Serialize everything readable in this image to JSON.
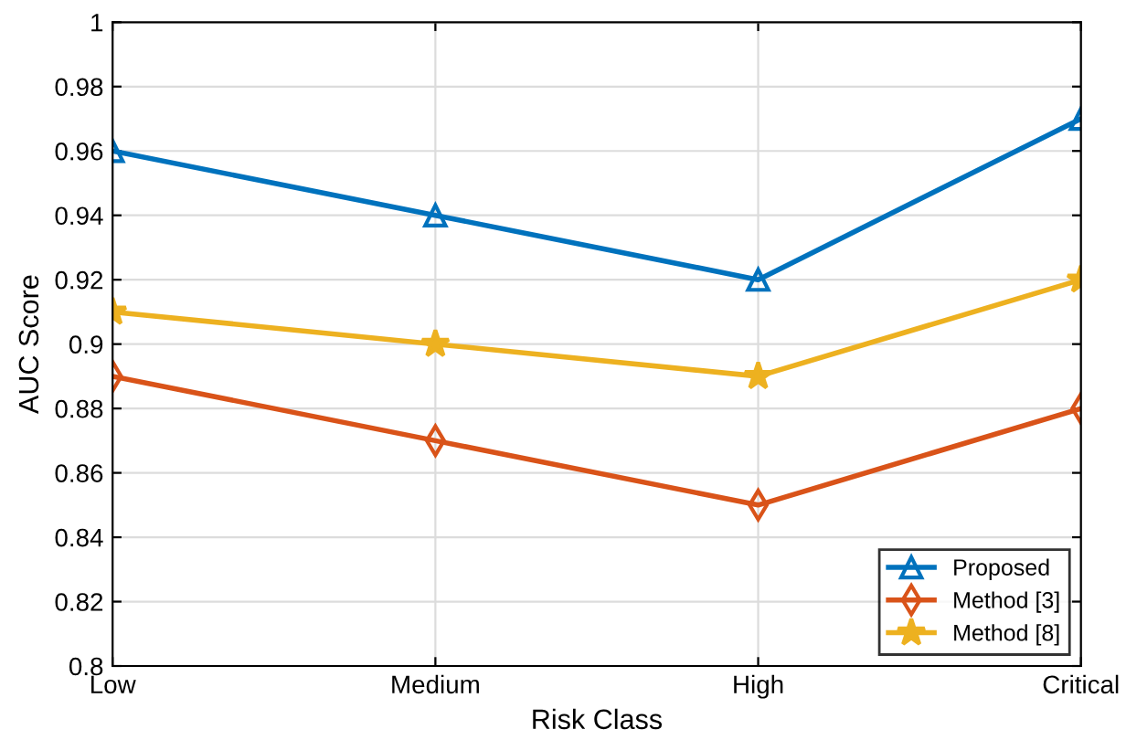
{
  "chart_data": {
    "type": "line",
    "xlabel": "Risk Class",
    "ylabel": "AUC Score",
    "categories": [
      "Low",
      "Medium",
      "High",
      "Critical"
    ],
    "series": [
      {
        "name": "Proposed",
        "color": "#0072bd",
        "marker": "triangle",
        "values": [
          0.96,
          0.94,
          0.92,
          0.97
        ]
      },
      {
        "name": "Method [3]",
        "color": "#d95319",
        "marker": "diamond",
        "values": [
          0.89,
          0.87,
          0.85,
          0.88
        ]
      },
      {
        "name": "Method [8]",
        "color": "#edb120",
        "marker": "star",
        "values": [
          0.91,
          0.9,
          0.89,
          0.92
        ]
      }
    ],
    "ylim": [
      0.8,
      1
    ],
    "yticks": [
      0.8,
      0.82,
      0.84,
      0.86,
      0.88,
      0.9,
      0.92,
      0.94,
      0.96,
      0.98,
      1
    ],
    "grid": true,
    "legend": "bottom right",
    "line_style": "solid"
  }
}
